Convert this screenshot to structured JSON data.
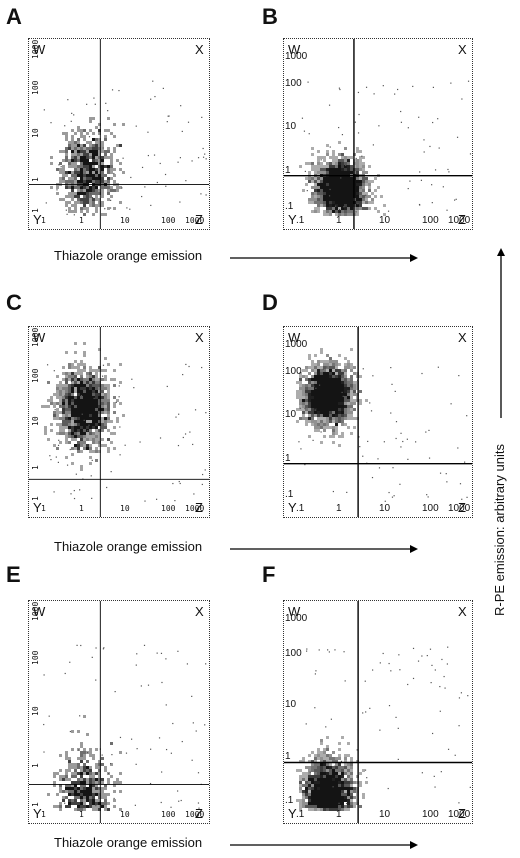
{
  "figure": {
    "panels": [
      {
        "id": "A",
        "letter": "A",
        "style": "mono",
        "quadrants": {
          "tl": "W",
          "tr": "X",
          "bl": "Y",
          "br": "Z"
        },
        "x_ticks": [
          "1",
          "1",
          "10",
          "100",
          "1000"
        ],
        "y_ticks": [
          "1000",
          "100",
          "10",
          "1",
          "1"
        ]
      },
      {
        "id": "B",
        "letter": "B",
        "style": "sans",
        "quadrants": {
          "tl": "W",
          "tr": "X",
          "bl": "Y",
          "br": "Z"
        },
        "x_ticks": [
          ".1",
          "1",
          "10",
          "100",
          "1000"
        ],
        "y_ticks": [
          "1000",
          "100",
          "10",
          "1",
          ".1"
        ]
      },
      {
        "id": "C",
        "letter": "C",
        "style": "mono",
        "quadrants": {
          "tl": "W",
          "tr": "X",
          "bl": "Y",
          "br": "Z"
        },
        "x_ticks": [
          "1",
          "1",
          "10",
          "100",
          "1000"
        ],
        "y_ticks": [
          "1000",
          "100",
          "10",
          "1",
          "1"
        ]
      },
      {
        "id": "D",
        "letter": "D",
        "style": "sans",
        "quadrants": {
          "tl": "W",
          "tr": "X",
          "bl": "Y",
          "br": "Z"
        },
        "x_ticks": [
          ".1",
          "1",
          "10",
          "100",
          "1000"
        ],
        "y_ticks": [
          "1000",
          "100",
          "10",
          "1",
          ".1"
        ]
      },
      {
        "id": "E",
        "letter": "E",
        "style": "mono",
        "quadrants": {
          "tl": "W",
          "tr": "X",
          "bl": "Y",
          "br": "Z"
        },
        "x_ticks": [
          "1",
          "1",
          "10",
          "100",
          "1000"
        ],
        "y_ticks": [
          "1000",
          "100",
          "10",
          "1",
          "1"
        ]
      },
      {
        "id": "F",
        "letter": "F",
        "style": "sans",
        "quadrants": {
          "tl": "W",
          "tr": "X",
          "bl": "Y",
          "br": "Z"
        },
        "x_ticks": [
          ".1",
          "1",
          "10",
          "100",
          "1000"
        ],
        "y_ticks": [
          "1000",
          "100",
          "10",
          "1",
          ".1"
        ]
      }
    ],
    "x_axis_caption": "Thiazole orange emission",
    "y_axis_caption": "R-PE emission: arbitrary units"
  },
  "chart_data": [
    {
      "type": "scatter",
      "panel": "A",
      "x_scale": "log",
      "y_scale": "log",
      "xlim": [
        0.1,
        1000
      ],
      "ylim": [
        0.1,
        1000
      ],
      "gates": {
        "x": 2.5,
        "y": 0.5
      },
      "population": {
        "center": [
          1.2,
          1.0
        ],
        "density": "light"
      }
    },
    {
      "type": "scatter",
      "panel": "B",
      "x_scale": "log",
      "y_scale": "log",
      "xlim": [
        0.1,
        1000
      ],
      "ylim": [
        0.1,
        1000
      ],
      "gates": {
        "x": 2,
        "y": 0.8
      },
      "population": {
        "center": [
          1.0,
          0.4
        ],
        "density": "dark"
      }
    },
    {
      "type": "scatter",
      "panel": "C",
      "x_scale": "log",
      "y_scale": "log",
      "xlim": [
        0.1,
        1000
      ],
      "ylim": [
        0.1,
        1000
      ],
      "gates": {
        "x": 2.5,
        "y": 0.35
      },
      "population": {
        "center": [
          1.0,
          15
        ],
        "density": "medium"
      }
    },
    {
      "type": "scatter",
      "panel": "D",
      "x_scale": "log",
      "y_scale": "log",
      "xlim": [
        0.1,
        1000
      ],
      "ylim": [
        0.1,
        1000
      ],
      "gates": {
        "x": 2.5,
        "y": 0.8
      },
      "population": {
        "center": [
          0.5,
          30
        ],
        "density": "dark"
      }
    },
    {
      "type": "scatter",
      "panel": "E",
      "x_scale": "log",
      "y_scale": "log",
      "xlim": [
        0.1,
        1000
      ],
      "ylim": [
        0.1,
        1000
      ],
      "gates": {
        "x": 2.5,
        "y": 0.3
      },
      "population": {
        "center": [
          1.0,
          0.15
        ],
        "density": "light"
      }
    },
    {
      "type": "scatter",
      "panel": "F",
      "x_scale": "log",
      "y_scale": "log",
      "xlim": [
        0.1,
        1000
      ],
      "ylim": [
        0.1,
        1000
      ],
      "gates": {
        "x": 2.5,
        "y": 0.8
      },
      "population": {
        "center": [
          0.5,
          0.2
        ],
        "density": "dark"
      }
    }
  ]
}
